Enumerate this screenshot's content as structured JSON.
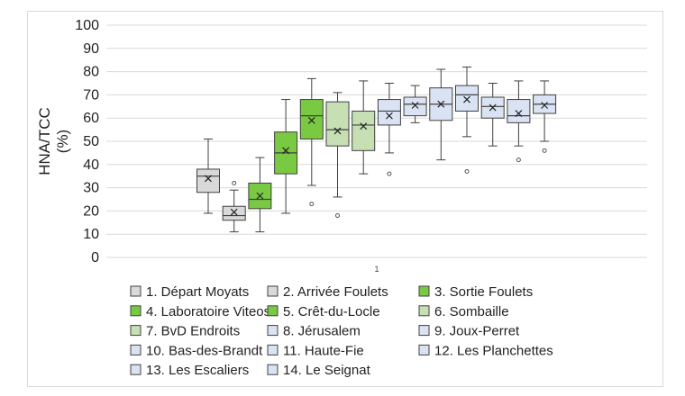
{
  "chart_data": {
    "type": "box",
    "ylabel": "HNA/TCC\n(%)",
    "yticks": [
      0,
      10,
      20,
      30,
      40,
      50,
      60,
      70,
      80,
      90,
      100
    ],
    "ylim": [
      0,
      100
    ],
    "x_category": "1",
    "grid": true,
    "legend_position": "bottom",
    "series": [
      {
        "name": "1. Départ Moyats",
        "color": "#d9d9d9",
        "min": 19,
        "q1": 28,
        "median": 35,
        "q3": 38,
        "max": 51,
        "mean": 34,
        "outliers": []
      },
      {
        "name": "2. Arrivée Foulets",
        "color": "#d9d9d9",
        "min": 11,
        "q1": 16,
        "median": 18,
        "q3": 22,
        "max": 29,
        "mean": 19.5,
        "outliers": [
          32
        ]
      },
      {
        "name": "3. Sortie Foulets",
        "color": "#7ac943",
        "min": 11,
        "q1": 21,
        "median": 25,
        "q3": 32,
        "max": 43,
        "mean": 26.5,
        "outliers": []
      },
      {
        "name": "4. Laboratoire Viteos",
        "color": "#7ac943",
        "min": 19,
        "q1": 36,
        "median": 45,
        "q3": 54,
        "max": 68,
        "mean": 46,
        "outliers": []
      },
      {
        "name": "5. Crêt-du-Locle",
        "color": "#7ac943",
        "min": 31,
        "q1": 51,
        "median": 61,
        "q3": 68,
        "max": 77,
        "mean": 59,
        "outliers": [
          23
        ]
      },
      {
        "name": "6. Sombaille",
        "color": "#c6e0b4",
        "min": 26,
        "q1": 48,
        "median": 55,
        "q3": 67,
        "max": 71,
        "mean": 54.5,
        "outliers": [
          18
        ]
      },
      {
        "name": "7. BvD Endroits",
        "color": "#c6e0b4",
        "min": 36,
        "q1": 46,
        "median": 57,
        "q3": 63,
        "max": 76,
        "mean": 56.5,
        "outliers": []
      },
      {
        "name": "8. Jérusalem",
        "color": "#dae3f3",
        "min": 45,
        "q1": 57,
        "median": 63,
        "q3": 68,
        "max": 75,
        "mean": 61,
        "outliers": [
          36
        ]
      },
      {
        "name": "9. Joux-Perret",
        "color": "#dae3f3",
        "min": 58,
        "q1": 61,
        "median": 66,
        "q3": 69,
        "max": 74,
        "mean": 65.5,
        "outliers": []
      },
      {
        "name": "10. Bas-des-Brandt",
        "color": "#dae3f3",
        "min": 42,
        "q1": 59,
        "median": 66,
        "q3": 73,
        "max": 81,
        "mean": 66,
        "outliers": []
      },
      {
        "name": "11. Haute-Fie",
        "color": "#dae3f3",
        "min": 52,
        "q1": 63,
        "median": 70,
        "q3": 74,
        "max": 82,
        "mean": 68,
        "outliers": [
          37
        ]
      },
      {
        "name": "12. Les Planchettes",
        "color": "#dae3f3",
        "min": 48,
        "q1": 60,
        "median": 65,
        "q3": 69,
        "max": 75,
        "mean": 64.5,
        "outliers": []
      },
      {
        "name": "13. Les Escaliers",
        "color": "#dae3f3",
        "min": 48,
        "q1": 58,
        "median": 61,
        "q3": 68,
        "max": 76,
        "mean": 62,
        "outliers": [
          42
        ]
      },
      {
        "name": "14. Le Seignat",
        "color": "#dae3f3",
        "min": 50,
        "q1": 62,
        "median": 66,
        "q3": 70,
        "max": 76,
        "mean": 65.5,
        "outliers": [
          46
        ]
      }
    ]
  }
}
